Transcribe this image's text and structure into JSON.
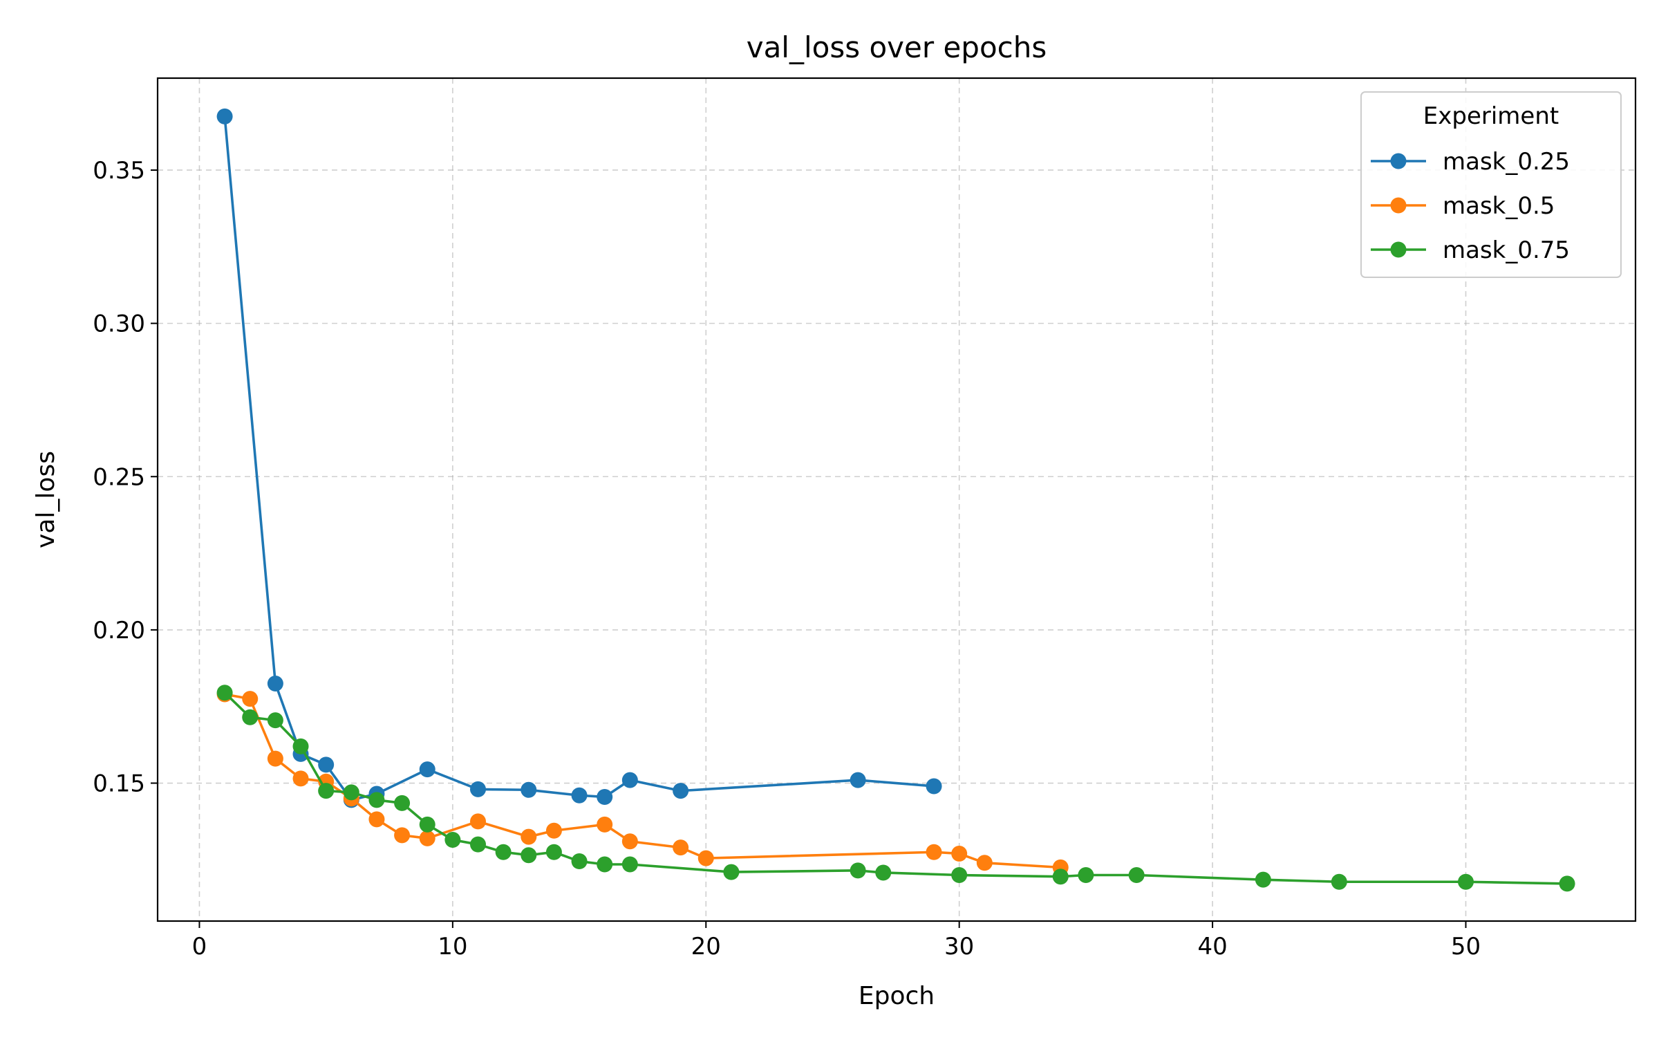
{
  "chart_data": {
    "type": "line",
    "title": "val_loss over epochs",
    "xlabel": "Epoch",
    "ylabel": "val_loss",
    "xlim": [
      -1.65,
      56.7
    ],
    "ylim": [
      0.105,
      0.38
    ],
    "x_ticks": [
      0,
      10,
      20,
      30,
      40,
      50
    ],
    "x_tick_labels": [
      "0",
      "10",
      "20",
      "30",
      "40",
      "50"
    ],
    "y_ticks": [
      0.15,
      0.2,
      0.25,
      0.3,
      0.35
    ],
    "y_tick_labels": [
      "0.15",
      "0.20",
      "0.25",
      "0.30",
      "0.35"
    ],
    "grid": true,
    "grid_style": "dashed",
    "legend": {
      "title": "Experiment",
      "placement": "top-right"
    },
    "series": [
      {
        "name": "mask_0.25",
        "color": "#1f77b4",
        "marker": "circle",
        "x": [
          1,
          3,
          4,
          5,
          6,
          7,
          9,
          11,
          13,
          15,
          16,
          17,
          19,
          26,
          29
        ],
        "y": [
          0.3675,
          0.1825,
          0.1595,
          0.156,
          0.1445,
          0.1465,
          0.1545,
          0.148,
          0.1478,
          0.146,
          0.1455,
          0.151,
          0.1475,
          0.151,
          0.149
        ]
      },
      {
        "name": "mask_0.5",
        "color": "#ff7f0e",
        "marker": "circle",
        "x": [
          1,
          2,
          3,
          4,
          5,
          6,
          7,
          8,
          9,
          11,
          13,
          14,
          16,
          17,
          19,
          20,
          29,
          30,
          31,
          34
        ],
        "y": [
          0.179,
          0.1775,
          0.158,
          0.1515,
          0.1505,
          0.145,
          0.1382,
          0.133,
          0.132,
          0.1375,
          0.1325,
          0.1345,
          0.1365,
          0.131,
          0.129,
          0.1255,
          0.1275,
          0.127,
          0.124,
          0.1225
        ]
      },
      {
        "name": "mask_0.75",
        "color": "#2ca02c",
        "marker": "circle",
        "x": [
          1,
          2,
          3,
          4,
          5,
          6,
          7,
          8,
          9,
          10,
          11,
          12,
          13,
          14,
          15,
          16,
          17,
          21,
          26,
          27,
          30,
          34,
          35,
          37,
          42,
          45,
          50,
          54
        ],
        "y": [
          0.1795,
          0.1715,
          0.1705,
          0.162,
          0.1475,
          0.147,
          0.1445,
          0.1435,
          0.1365,
          0.1315,
          0.13,
          0.1275,
          0.1265,
          0.1275,
          0.1245,
          0.1235,
          0.1235,
          0.121,
          0.1215,
          0.1208,
          0.12,
          0.1195,
          0.12,
          0.12,
          0.1185,
          0.1178,
          0.1178,
          0.1172
        ]
      }
    ]
  }
}
